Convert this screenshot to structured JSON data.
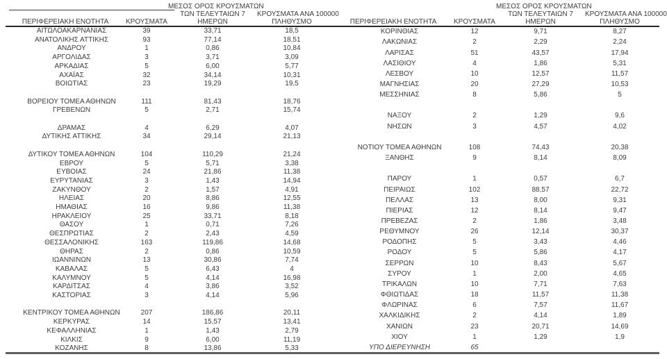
{
  "report": {
    "headers": {
      "region": [
        "ΠΕΡΙΦΕΡΕΙΑΚΗ ΕΝΟΤΗΤΑ"
      ],
      "cases": [
        "ΚΡΟΥΣΜΑΤΑ"
      ],
      "avg7": [
        "ΜΕΣΟΣ ΟΡΟΣ ΚΡΟΥΣΜΑΤΩΝ",
        "ΤΩΝ ΤΕΛΕΥΤΑΙΩΝ 7",
        "ΗΜΕΡΩΝ"
      ],
      "per100k": [
        "ΚΡΟΥΣΜΑΤΑ ΑΝΑ 100000",
        "ΠΛΗΘΥΣΜΟ"
      ]
    },
    "colors": {
      "text": "#3c3c3c",
      "header_rule": "#262626",
      "bottom_rule": "#5f5f5f"
    },
    "left_rows": [
      {
        "cells": [
          "ΑΙΤΩΛΟΑΚΑΡΝΑΝΙΑΣ",
          "39",
          "33,71",
          "18,5"
        ]
      },
      {
        "cells": [
          "ΑΝΑΤΟΛΙΚΗΣ ΑΤΤΙΚΗΣ",
          "93",
          "77,14",
          "18,51"
        ]
      },
      {
        "cells": [
          "ΑΝΔΡΟΥ",
          "1",
          "0,86",
          "10,84"
        ]
      },
      {
        "cells": [
          "ΑΡΓΟΛΙΔΑΣ",
          "3",
          "3,71",
          "3,09"
        ]
      },
      {
        "cells": [
          "ΑΡΚΑΔΙΑΣ",
          "5",
          "6,00",
          "5,77"
        ]
      },
      {
        "cells": [
          "ΑΧΑΪΑΣ",
          "32",
          "34,14",
          "10,31"
        ]
      },
      {
        "cells": [
          "ΒΟΙΩΤΙΑΣ",
          "23",
          "19,29",
          "19,5"
        ]
      },
      {
        "spacer": true
      },
      {
        "cells": [
          "ΒΟΡΕΙΟΥ ΤΟΜΕΑ ΑΘΗΝΩΝ",
          "111",
          "81,43",
          "18,76"
        ]
      },
      {
        "cells": [
          "ΓΡΕΒΕΝΩΝ",
          "5",
          "2,71",
          "15,74"
        ]
      },
      {
        "spacer": true
      },
      {
        "cells": [
          "ΔΡΑΜΑΣ",
          "4",
          "6,29",
          "4,07"
        ]
      },
      {
        "cells": [
          "ΔΥΤΙΚΗΣ ΑΤΤΙΚΗΣ",
          "34",
          "29,14",
          "21,13"
        ]
      },
      {
        "spacer": true
      },
      {
        "cells": [
          "ΔΥΤΙΚΟΥ ΤΟΜΕΑ ΑΘΗΝΩΝ",
          "104",
          "110,29",
          "21,24"
        ]
      },
      {
        "cells": [
          "ΕΒΡΟΥ",
          "5",
          "5,71",
          "3,38"
        ]
      },
      {
        "cells": [
          "ΕΥΒΟΙΑΣ",
          "24",
          "21,86",
          "11,38"
        ]
      },
      {
        "cells": [
          "ΕΥΡΥΤΑΝΙΑΣ",
          "3",
          "1,43",
          "14,94"
        ]
      },
      {
        "cells": [
          "ΖΑΚΥΝΘΟΥ",
          "2",
          "1,57",
          "4,91"
        ]
      },
      {
        "cells": [
          "ΗΛΕΙΑΣ",
          "20",
          "8,86",
          "12,55"
        ]
      },
      {
        "cells": [
          "ΗΜΑΘΙΑΣ",
          "16",
          "9,86",
          "11,38"
        ]
      },
      {
        "cells": [
          "ΗΡΑΚΛΕΙΟΥ",
          "25",
          "33,71",
          "8,18"
        ]
      },
      {
        "cells": [
          "ΘΑΣΟΥ",
          "1",
          "0,71",
          "7,26"
        ]
      },
      {
        "cells": [
          "ΘΕΣΠΡΩΤΙΑΣ",
          "2",
          "2,43",
          "4,59"
        ]
      },
      {
        "cells": [
          "ΘΕΣΣΑΛΟΝΙΚΗΣ",
          "163",
          "119,86",
          "14,68"
        ]
      },
      {
        "cells": [
          "ΘΗΡΑΣ",
          "2",
          "0,86",
          "10,59"
        ]
      },
      {
        "cells": [
          "ΙΩΑΝΝΙΝΩΝ",
          "13",
          "30,86",
          "7,74"
        ]
      },
      {
        "cells": [
          "ΚΑΒΑΛΑΣ",
          "5",
          "6,43",
          "4"
        ]
      },
      {
        "cells": [
          "ΚΑΛΥΜΝΟΥ",
          "5",
          "4,14",
          "16,98"
        ]
      },
      {
        "cells": [
          "ΚΑΡΔΙΤΣΑΣ",
          "4",
          "3,86",
          "3,52"
        ]
      },
      {
        "cells": [
          "ΚΑΣΤΟΡΙΑΣ",
          "3",
          "4,14",
          "5,96"
        ]
      },
      {
        "spacer": true
      },
      {
        "cells": [
          "ΚΕΝΤΡΙΚΟΥ ΤΟΜΕΑ ΑΘΗΝΩΝ",
          "207",
          "186,86",
          "20,11"
        ]
      },
      {
        "cells": [
          "ΚΕΡΚΥΡΑΣ",
          "14",
          "15,57",
          "13,41"
        ]
      },
      {
        "cells": [
          "ΚΕΦΑΛΛΗΝΙΑΣ",
          "1",
          "1,43",
          "2,79"
        ]
      },
      {
        "cells": [
          "ΚΙΛΚΙΣ",
          "9",
          "6,00",
          "11,19"
        ]
      },
      {
        "cells": [
          "ΚΟΖΑΝΗΣ",
          "8",
          "13,86",
          "5,33"
        ]
      }
    ],
    "right_rows": [
      {
        "cells": [
          "ΚΟΡΙΝΘΙΑΣ",
          "12",
          "9,71",
          "8,27"
        ]
      },
      {
        "cells": [
          "ΛΑΚΩΝΙΑΣ",
          "2",
          "2,29",
          "2,24"
        ]
      },
      {
        "cells": [
          "ΛΑΡΙΣΑΣ",
          "51",
          "43,57",
          "17,94"
        ]
      },
      {
        "cells": [
          "ΛΑΣΙΘΙΟΥ",
          "4",
          "1,86",
          "5,31"
        ]
      },
      {
        "cells": [
          "ΛΕΣΒΟΥ",
          "10",
          "12,57",
          "11,57"
        ]
      },
      {
        "cells": [
          "ΜΑΓΝΗΣΙΑΣ",
          "20",
          "27,29",
          "10,53"
        ]
      },
      {
        "cells": [
          "ΜΕΣΣΗΝΙΑΣ",
          "8",
          "5,86",
          "5"
        ]
      },
      {
        "spacer": true
      },
      {
        "cells": [
          "ΝΑΞΟΥ",
          "2",
          "1,29",
          "9,6"
        ]
      },
      {
        "cells": [
          "ΝΗΣΩΝ",
          "3",
          "4,57",
          "4,02"
        ]
      },
      {
        "spacer": true
      },
      {
        "cells": [
          "ΝΟΤΙΟΥ ΤΟΜΕΑ ΑΘΗΝΩΝ",
          "108",
          "74,43",
          "20,38"
        ]
      },
      {
        "cells": [
          "ΞΑΝΘΗΣ",
          "9",
          "8,14",
          "8,09"
        ]
      },
      {
        "spacer": true
      },
      {
        "cells": [
          "ΠΑΡΟΥ",
          "1",
          "0,57",
          "6,7"
        ]
      },
      {
        "cells": [
          "ΠΕΙΡΑΙΩΣ",
          "102",
          "88,57",
          "22,72"
        ]
      },
      {
        "cells": [
          "ΠΕΛΛΑΣ",
          "13",
          "8,00",
          "9,31"
        ]
      },
      {
        "cells": [
          "ΠΙΕΡΙΑΣ",
          "12",
          "8,14",
          "9,47"
        ]
      },
      {
        "cells": [
          "ΠΡΕΒΕΖΑΣ",
          "2",
          "1,86",
          "3,48"
        ]
      },
      {
        "cells": [
          "ΡΕΘΥΜΝΟΥ",
          "26",
          "12,14",
          "30,37"
        ]
      },
      {
        "cells": [
          "ΡΟΔΟΠΗΣ",
          "5",
          "3,43",
          "4,46"
        ]
      },
      {
        "cells": [
          "ΡΟΔΟΥ",
          "5",
          "5,86",
          "4,17"
        ]
      },
      {
        "cells": [
          "ΣΕΡΡΩΝ",
          "10",
          "8,43",
          "5,67"
        ]
      },
      {
        "cells": [
          "ΣΥΡΟΥ",
          "1",
          "2,00",
          "4,65"
        ]
      },
      {
        "cells": [
          "ΤΡΙΚΑΛΩΝ",
          "10",
          "7,71",
          "7,63"
        ]
      },
      {
        "cells": [
          "ΦΘΙΩΤΙΔΑΣ",
          "18",
          "11,57",
          "11,38"
        ]
      },
      {
        "cells": [
          "ΦΛΩΡΙΝΑΣ",
          "6",
          "7,57",
          "11,67"
        ]
      },
      {
        "cells": [
          "ΧΑΛΚΙΔΙΚΗΣ",
          "2",
          "4,14",
          "1,89"
        ]
      },
      {
        "cells": [
          "ΧΑΝΙΩΝ",
          "23",
          "20,71",
          "14,69"
        ]
      },
      {
        "cells": [
          "ΧΙΟΥ",
          "1",
          "1,29",
          "1,9"
        ]
      },
      {
        "cells": [
          "ΥΠΟ ΔΙΕΡΕΥΝΗΣΗ",
          "65",
          "",
          ""
        ],
        "italic": true
      }
    ]
  }
}
